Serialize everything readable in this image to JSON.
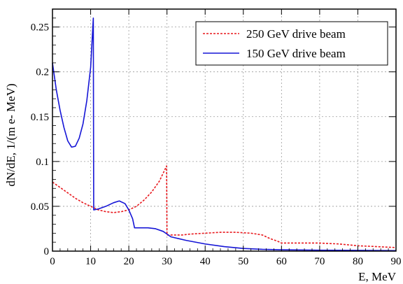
{
  "chart_data": {
    "type": "line",
    "xlabel": "E, MeV",
    "ylabel": "dN/dE, 1/(m e- MeV)",
    "xlim": [
      0,
      90
    ],
    "ylim": [
      0,
      0.27
    ],
    "x_ticks": [
      "0",
      "10",
      "20",
      "30",
      "40",
      "50",
      "60",
      "70",
      "80",
      "90"
    ],
    "y_ticks": [
      "0",
      "0.05",
      "0.1",
      "0.15",
      "0.2",
      "0.25"
    ],
    "grid": true,
    "legend_position": "top-right",
    "series": [
      {
        "name": "250 GeV drive beam",
        "color": "#e8191e",
        "style": "dashed",
        "points": [
          [
            0,
            0.077
          ],
          [
            2,
            0.071
          ],
          [
            4,
            0.065
          ],
          [
            6,
            0.059
          ],
          [
            8,
            0.054
          ],
          [
            10,
            0.05
          ],
          [
            12,
            0.046
          ],
          [
            14,
            0.044
          ],
          [
            16,
            0.043
          ],
          [
            18,
            0.044
          ],
          [
            20,
            0.046
          ],
          [
            22,
            0.05
          ],
          [
            24,
            0.057
          ],
          [
            26,
            0.066
          ],
          [
            28,
            0.078
          ],
          [
            29.9,
            0.095
          ],
          [
            30,
            0.018
          ],
          [
            32,
            0.018
          ],
          [
            34,
            0.018
          ],
          [
            36,
            0.019
          ],
          [
            40,
            0.02
          ],
          [
            44,
            0.021
          ],
          [
            48,
            0.021
          ],
          [
            52,
            0.02
          ],
          [
            55,
            0.018
          ],
          [
            57,
            0.014
          ],
          [
            59,
            0.011
          ],
          [
            60,
            0.009
          ],
          [
            65,
            0.009
          ],
          [
            70,
            0.009
          ],
          [
            75,
            0.008
          ],
          [
            80,
            0.006
          ],
          [
            85,
            0.005
          ],
          [
            90,
            0.004
          ]
        ]
      },
      {
        "name": "150 GeV drive beam",
        "color": "#1515d6",
        "style": "solid",
        "points": [
          [
            0,
            0.21
          ],
          [
            1,
            0.18
          ],
          [
            2,
            0.157
          ],
          [
            3,
            0.138
          ],
          [
            4,
            0.123
          ],
          [
            5,
            0.116
          ],
          [
            6,
            0.117
          ],
          [
            7,
            0.126
          ],
          [
            8,
            0.142
          ],
          [
            9,
            0.168
          ],
          [
            10,
            0.205
          ],
          [
            10.7,
            0.26
          ],
          [
            10.8,
            0.046
          ],
          [
            12,
            0.047
          ],
          [
            14,
            0.05
          ],
          [
            16,
            0.054
          ],
          [
            17.5,
            0.056
          ],
          [
            19,
            0.053
          ],
          [
            20,
            0.046
          ],
          [
            21,
            0.036
          ],
          [
            21.5,
            0.026
          ],
          [
            23,
            0.026
          ],
          [
            25,
            0.026
          ],
          [
            27,
            0.025
          ],
          [
            29,
            0.022
          ],
          [
            30,
            0.019
          ],
          [
            31,
            0.016
          ],
          [
            33,
            0.014
          ],
          [
            35,
            0.012
          ],
          [
            40,
            0.008
          ],
          [
            45,
            0.005
          ],
          [
            50,
            0.003
          ],
          [
            55,
            0.002
          ],
          [
            60,
            0.0015
          ],
          [
            70,
            0.001
          ],
          [
            80,
            0.0008
          ],
          [
            90,
            0.0005
          ]
        ]
      }
    ]
  }
}
